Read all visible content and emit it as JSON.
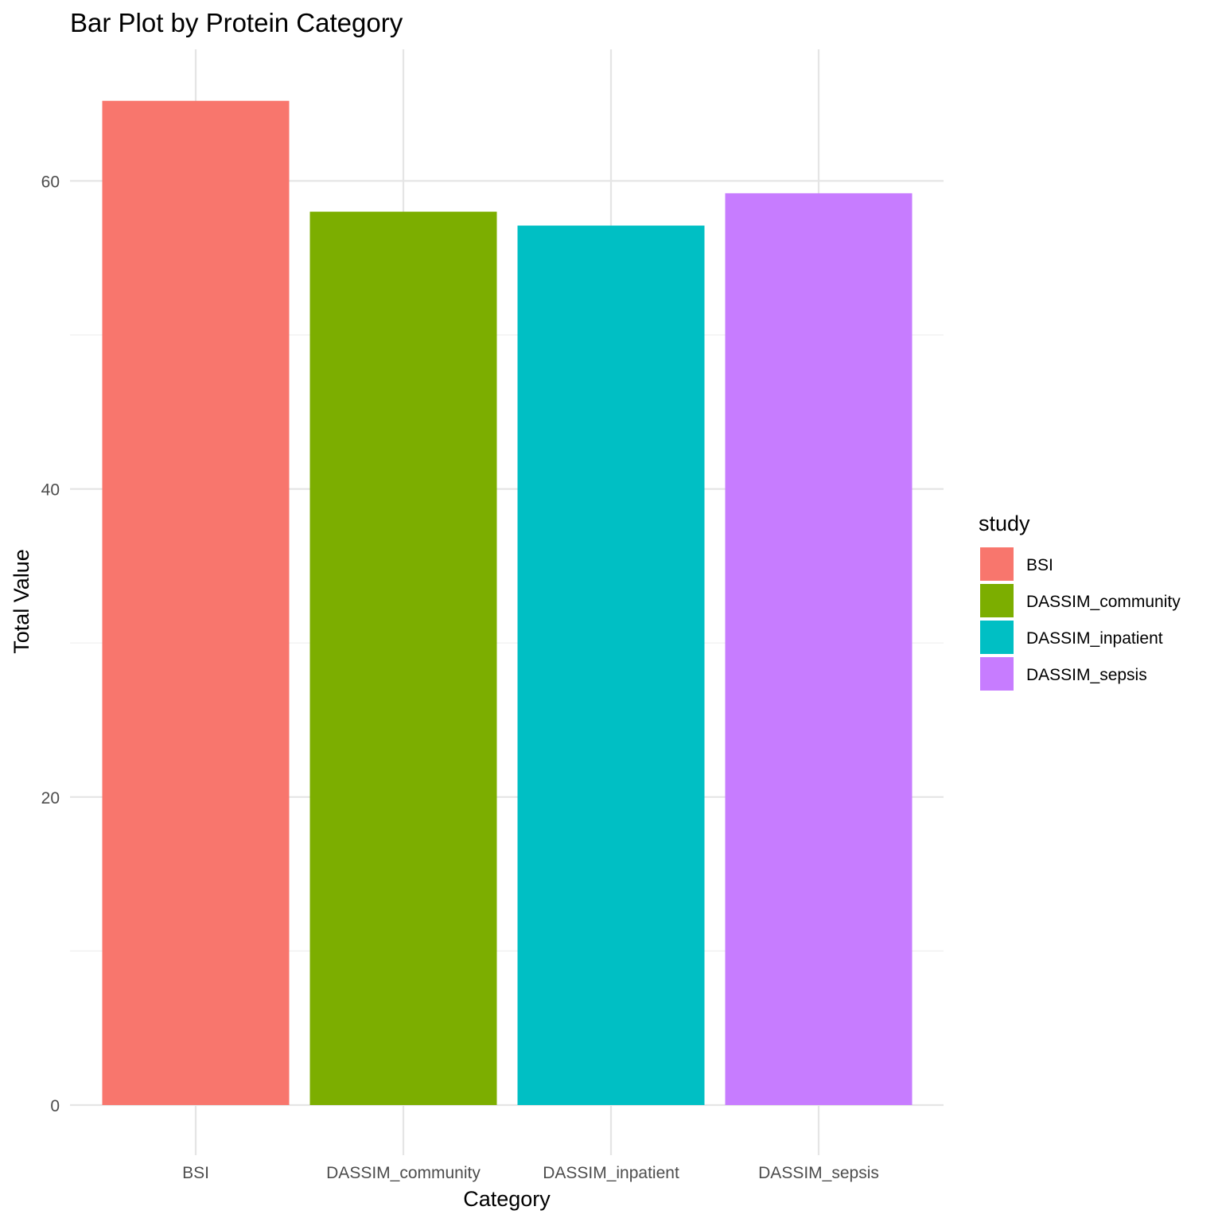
{
  "chart_data": {
    "type": "bar",
    "title": "Bar Plot by Protein Category",
    "xlabel": "Category",
    "ylabel": "Total Value",
    "categories": [
      "BSI",
      "DASSIM_community",
      "DASSIM_inpatient",
      "DASSIM_sepsis"
    ],
    "values": [
      65.2,
      58.0,
      57.1,
      59.2
    ],
    "colors": [
      "#F8766D",
      "#7CAE00",
      "#00BFC4",
      "#C77CFF"
    ],
    "ylim": [
      0,
      68
    ],
    "yticks": [
      0,
      20,
      40,
      60
    ],
    "grid": true,
    "legend": {
      "title": "study",
      "position": "right",
      "entries": [
        "BSI",
        "DASSIM_community",
        "DASSIM_inpatient",
        "DASSIM_sepsis"
      ]
    }
  }
}
